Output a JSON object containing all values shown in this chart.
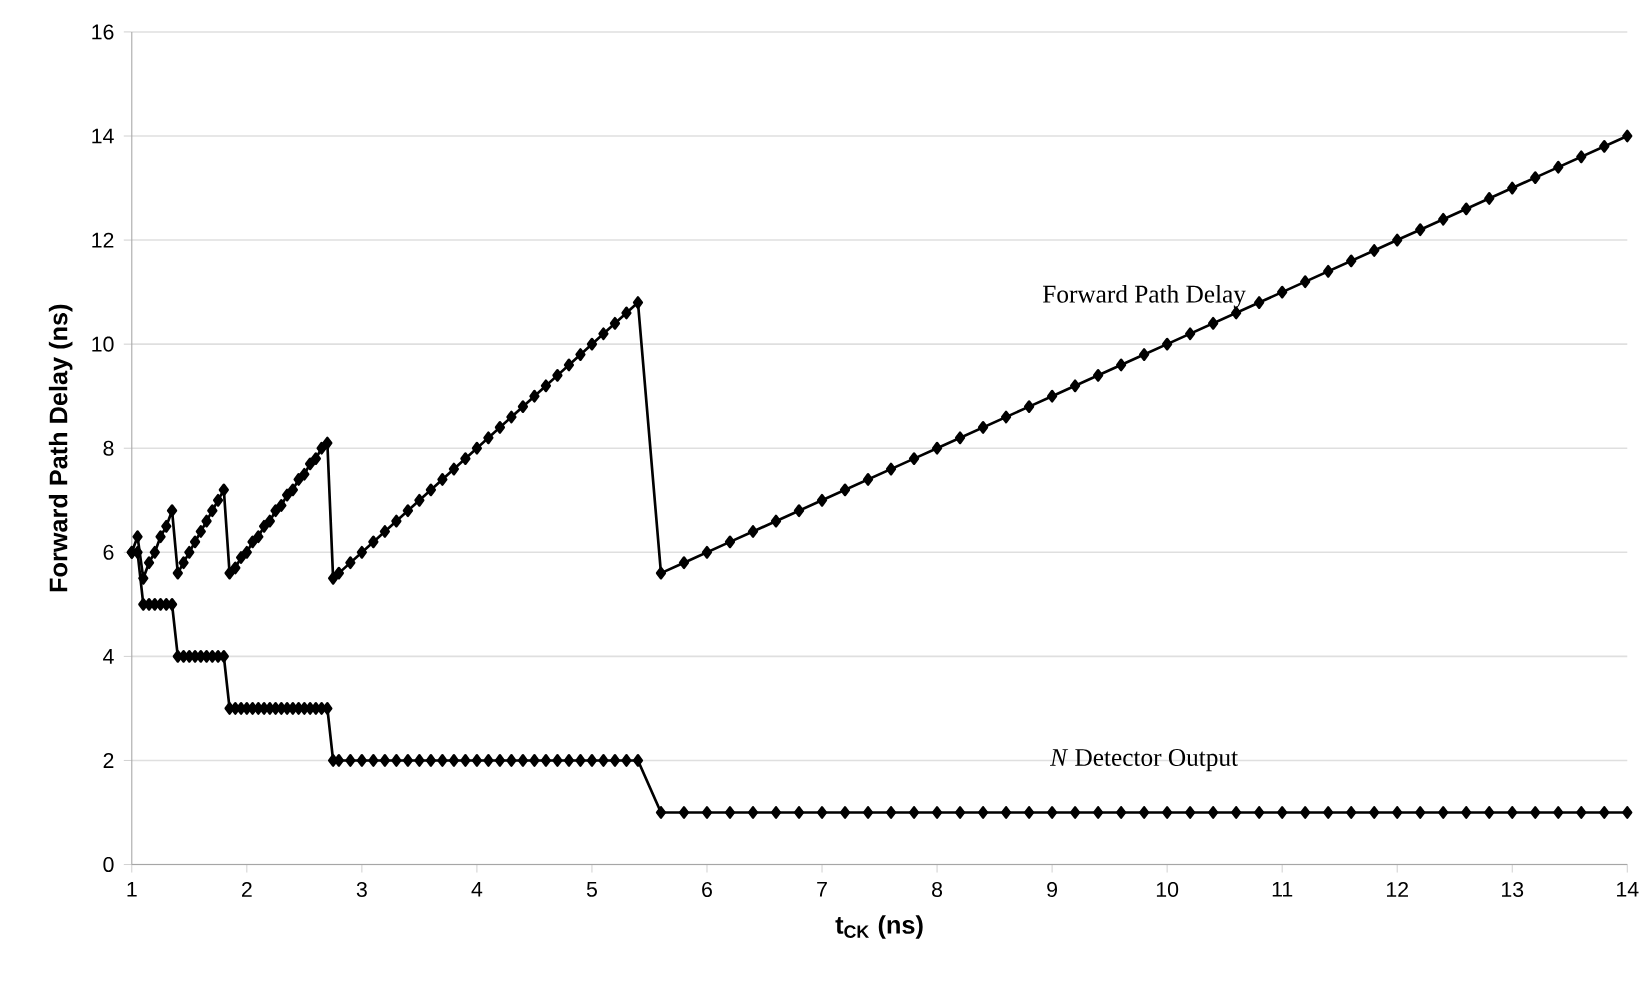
{
  "chart_data": {
    "type": "line",
    "xlabel": "t$_{CK}$ (ns)",
    "ylabel": "Forward Path Delay (ns)",
    "x": [
      1.0,
      1.05,
      1.1,
      1.15,
      1.2,
      1.25,
      1.3,
      1.35,
      1.4,
      1.45,
      1.5,
      1.55,
      1.6,
      1.65,
      1.7,
      1.75,
      1.8,
      1.85,
      1.9,
      1.95,
      2.0,
      2.05,
      2.1,
      2.15,
      2.2,
      2.25,
      2.3,
      2.35,
      2.4,
      2.45,
      2.5,
      2.55,
      2.6,
      2.65,
      2.7,
      2.75,
      2.8,
      2.9,
      3.0,
      3.1,
      3.2,
      3.3,
      3.4,
      3.5,
      3.6,
      3.7,
      3.8,
      3.9,
      4.0,
      4.1,
      4.2,
      4.3,
      4.4,
      4.5,
      4.6,
      4.7,
      4.8,
      4.9,
      5.0,
      5.1,
      5.2,
      5.3,
      5.4,
      5.6,
      5.8,
      6.0,
      6.2,
      6.4,
      6.6,
      6.8,
      7.0,
      7.2,
      7.4,
      7.6,
      7.8,
      8.0,
      8.2,
      8.4,
      8.6,
      8.8,
      9.0,
      9.2,
      9.4,
      9.6,
      9.8,
      10.0,
      10.2,
      10.4,
      10.6,
      10.8,
      11.0,
      11.2,
      11.4,
      11.6,
      11.8,
      12.0,
      12.2,
      12.4,
      12.6,
      12.8,
      13.0,
      13.2,
      13.4,
      13.6,
      13.8,
      14.0
    ],
    "series": [
      {
        "name": "Forward Path Delay",
        "color": "#000000",
        "values": [
          6.0,
          6.3,
          5.5,
          5.8,
          6.0,
          6.3,
          6.5,
          6.8,
          5.6,
          5.8,
          6.0,
          6.2,
          6.4,
          6.6,
          6.8,
          7.0,
          7.2,
          5.6,
          5.7,
          5.9,
          6.0,
          6.2,
          6.3,
          6.5,
          6.6,
          6.8,
          6.9,
          7.1,
          7.2,
          7.4,
          7.5,
          7.7,
          7.8,
          8.0,
          8.1,
          5.5,
          5.6,
          5.8,
          6.0,
          6.2,
          6.4,
          6.6,
          6.8,
          7.0,
          7.2,
          7.4,
          7.6,
          7.8,
          8.0,
          8.2,
          8.4,
          8.6,
          8.8,
          9.0,
          9.2,
          9.4,
          9.6,
          9.8,
          10.0,
          10.2,
          10.4,
          10.6,
          10.8,
          5.6,
          5.8,
          6.0,
          6.2,
          6.4,
          6.6,
          6.8,
          7.0,
          7.2,
          7.4,
          7.6,
          7.8,
          8.0,
          8.2,
          8.4,
          8.6,
          8.8,
          9.0,
          9.2,
          9.4,
          9.6,
          9.8,
          10.0,
          10.2,
          10.4,
          10.6,
          10.8,
          11.0,
          11.2,
          11.4,
          11.6,
          11.8,
          12.0,
          12.2,
          12.4,
          12.6,
          12.8,
          13.0,
          13.2,
          13.4,
          13.6,
          13.8,
          14.0
        ]
      },
      {
        "name": "*N* Detector Output",
        "color": "#000000",
        "values": [
          6,
          6,
          5,
          5,
          5,
          5,
          5,
          5,
          4,
          4,
          4,
          4,
          4,
          4,
          4,
          4,
          4,
          3,
          3,
          3,
          3,
          3,
          3,
          3,
          3,
          3,
          3,
          3,
          3,
          3,
          3,
          3,
          3,
          3,
          3,
          2,
          2,
          2,
          2,
          2,
          2,
          2,
          2,
          2,
          2,
          2,
          2,
          2,
          2,
          2,
          2,
          2,
          2,
          2,
          2,
          2,
          2,
          2,
          2,
          2,
          2,
          2,
          2,
          1,
          1,
          1,
          1,
          1,
          1,
          1,
          1,
          1,
          1,
          1,
          1,
          1,
          1,
          1,
          1,
          1,
          1,
          1,
          1,
          1,
          1,
          1,
          1,
          1,
          1,
          1,
          1,
          1,
          1,
          1,
          1,
          1,
          1,
          1,
          1,
          1,
          1,
          1,
          1,
          1,
          1,
          1
        ]
      }
    ],
    "xlim": [
      1,
      14
    ],
    "xticks": [
      1,
      2,
      3,
      4,
      5,
      6,
      7,
      8,
      9,
      10,
      11,
      12,
      13,
      14
    ],
    "ylim": [
      0,
      16
    ],
    "yticks": [
      0,
      2,
      4,
      6,
      8,
      10,
      12,
      14,
      16
    ],
    "grid": "y",
    "marker": "diamond",
    "line_style": "solid"
  }
}
